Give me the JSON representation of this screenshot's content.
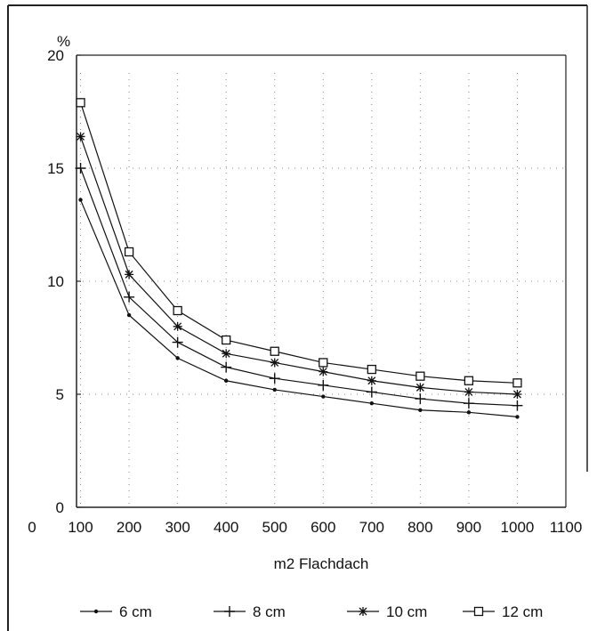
{
  "chart_data": {
    "type": "line",
    "title": "",
    "xlabel": "m2 Flachdach",
    "ylabel": "%",
    "xlim": [
      0,
      1100
    ],
    "ylim": [
      0,
      20
    ],
    "x_ticks": [
      0,
      100,
      200,
      300,
      400,
      500,
      600,
      700,
      800,
      900,
      1000,
      1100
    ],
    "y_ticks": [
      0,
      5,
      10,
      15,
      20
    ],
    "grid": "dotted",
    "legend_position": "bottom",
    "x": [
      100,
      200,
      300,
      400,
      500,
      600,
      700,
      800,
      900,
      1000
    ],
    "series": [
      {
        "name": "6 cm",
        "marker": "dot",
        "color": "#111111",
        "values": [
          13.6,
          8.5,
          6.6,
          5.6,
          5.2,
          4.9,
          4.6,
          4.3,
          4.2,
          4.0
        ]
      },
      {
        "name": "8 cm",
        "marker": "plus",
        "color": "#111111",
        "values": [
          15.0,
          9.3,
          7.3,
          6.2,
          5.7,
          5.4,
          5.1,
          4.8,
          4.6,
          4.5
        ]
      },
      {
        "name": "10 cm",
        "marker": "star",
        "color": "#111111",
        "values": [
          16.4,
          10.3,
          8.0,
          6.8,
          6.4,
          6.0,
          5.6,
          5.3,
          5.1,
          5.0
        ]
      },
      {
        "name": "12 cm",
        "marker": "square",
        "color": "#111111",
        "values": [
          17.9,
          11.3,
          8.7,
          7.4,
          6.9,
          6.4,
          6.1,
          5.8,
          5.6,
          5.5
        ]
      }
    ]
  }
}
